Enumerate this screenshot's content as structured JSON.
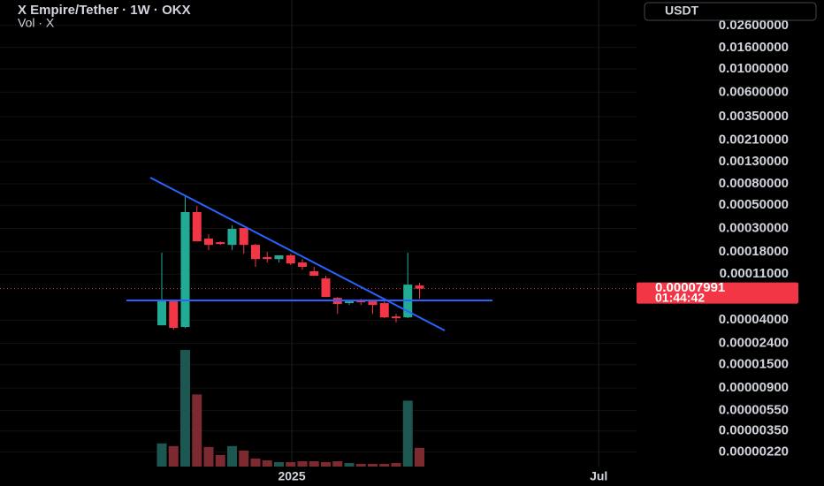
{
  "chart_data": {
    "type": "candlestick",
    "title": "X Empire/Tether · 1W · OKX",
    "subtitle": "Vol · X",
    "currency": "USDT",
    "countdown": "01:44:42",
    "log_scale": true,
    "grid": true,
    "up_color": "#22ab94",
    "down_color": "#f23645",
    "volume_up_color": "#1d5752",
    "volume_down_color": "#7c2a2f",
    "ylim": [
      1.6e-06,
      0.0455
    ],
    "yticks": [
      {
        "value": 0.026,
        "label": "0.02600000"
      },
      {
        "value": 0.016,
        "label": "0.01600000"
      },
      {
        "value": 0.01,
        "label": "0.01000000"
      },
      {
        "value": 0.006,
        "label": "0.00600000"
      },
      {
        "value": 0.0035,
        "label": "0.00350000"
      },
      {
        "value": 0.0021,
        "label": "0.00210000"
      },
      {
        "value": 0.0013,
        "label": "0.00130000"
      },
      {
        "value": 0.0008,
        "label": "0.00080000"
      },
      {
        "value": 0.0005,
        "label": "0.00050000"
      },
      {
        "value": 0.0003,
        "label": "0.00030000"
      },
      {
        "value": 0.00018,
        "label": "0.00018000"
      },
      {
        "value": 0.00011,
        "label": "0.00011000"
      },
      {
        "value": 4e-05,
        "label": "0.00004000"
      },
      {
        "value": 2.4e-05,
        "label": "0.00002400"
      },
      {
        "value": 1.5e-05,
        "label": "0.00001500"
      },
      {
        "value": 9e-06,
        "label": "0.00000900"
      },
      {
        "value": 5.5e-06,
        "label": "0.00000550"
      },
      {
        "value": 3.5e-06,
        "label": "0.00000350"
      },
      {
        "value": 2.2e-06,
        "label": "0.00000220"
      }
    ],
    "xticks": [
      {
        "value": 11.1,
        "label": "2025"
      },
      {
        "value": 37.3,
        "label": "Jul"
      }
    ],
    "candles": [
      {
        "open": 3.57e-05,
        "high": 0.000176,
        "low": 3.57e-05,
        "close": 6.04e-05
      },
      {
        "open": 6.04e-05,
        "high": 6.04e-05,
        "low": 3.24e-05,
        "close": 3.37e-05
      },
      {
        "open": 3.44e-05,
        "high": 0.000609,
        "low": 3.37e-05,
        "close": 0.00043
      },
      {
        "open": 0.00043,
        "high": 0.000492,
        "low": 0.000226,
        "close": 0.000226
      },
      {
        "open": 0.00024,
        "high": 0.000264,
        "low": 0.000186,
        "close": 0.000209
      },
      {
        "open": 0.000222,
        "high": 0.000226,
        "low": 0.000209,
        "close": 0.000213
      },
      {
        "open": 0.000209,
        "high": 0.000321,
        "low": 0.000186,
        "close": 0.000297
      },
      {
        "open": 0.000303,
        "high": 0.000303,
        "low": 0.000172,
        "close": 0.000209
      },
      {
        "open": 0.000209,
        "high": 0.000213,
        "low": 0.000129,
        "close": 0.000153
      },
      {
        "open": 0.00016,
        "high": 0.000179,
        "low": 0.000142,
        "close": 0.000153
      },
      {
        "open": 0.000153,
        "high": 0.000166,
        "low": 0.000142,
        "close": 0.000166
      },
      {
        "open": 0.000166,
        "high": 0.000172,
        "low": 0.000134,
        "close": 0.000139
      },
      {
        "open": 0.000142,
        "high": 0.000153,
        "low": 0.000121,
        "close": 0.000129
      },
      {
        "open": 0.000117,
        "high": 0.000129,
        "low": 0.000106,
        "close": 0.000106
      },
      {
        "open": 0.0001,
        "high": 0.000106,
        "low": 6.65e-05,
        "close": 6.65e-05
      },
      {
        "open": 6.52e-05,
        "high": 6.65e-05,
        "low": 4.59e-05,
        "close": 5.69e-05
      },
      {
        "open": 5.81e-05,
        "high": 6.15e-05,
        "low": 5.58e-05,
        "close": 6.04e-05
      },
      {
        "open": 6.15e-05,
        "high": 6.39e-05,
        "low": 5.58e-05,
        "close": 5.92e-05
      },
      {
        "open": 6.04e-05,
        "high": 6.15e-05,
        "low": 4.59e-05,
        "close": 5.58e-05
      },
      {
        "open": 5.81e-05,
        "high": 6.04e-05,
        "low": 4.17e-05,
        "close": 4.25e-05
      },
      {
        "open": 4.33e-05,
        "high": 4.59e-05,
        "low": 3.79e-05,
        "close": 4.17e-05
      },
      {
        "open": 4.25e-05,
        "high": 0.000176,
        "low": 4.17e-05,
        "close": 8.73e-05
      },
      {
        "open": 8.56e-05,
        "high": 9.08e-05,
        "low": 6.39e-05,
        "close": 7.991e-05
      }
    ],
    "volume": [
      26,
      23,
      131,
      81,
      22,
      13,
      23,
      18,
      9,
      7,
      5,
      5,
      6,
      6,
      5,
      6,
      4,
      3,
      3,
      3,
      4,
      74,
      21
    ],
    "volume_ylim": [
      0,
      135
    ]
  }
}
